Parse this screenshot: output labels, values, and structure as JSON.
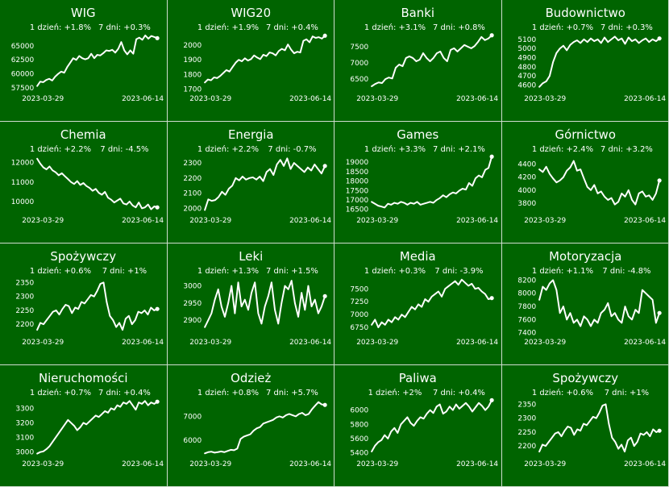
{
  "chart_data": [
    {
      "type": "line",
      "title": "WIG",
      "stats": {
        "d1": "1 dzień: +1.8%",
        "d7": "7 dni: +0.3%"
      },
      "x_start": "2023-03-29",
      "x_end": "2023-06-14",
      "yticks": [
        57500,
        60000,
        62500,
        65000
      ],
      "ylim": [
        57000,
        67500
      ],
      "values": [
        57800,
        58600,
        58500,
        58900,
        59100,
        58800,
        59500,
        60000,
        60400,
        60200,
        61200,
        62000,
        62800,
        62500,
        63200,
        62800,
        62600,
        62800,
        63600,
        62800,
        63400,
        63300,
        63700,
        64200,
        64100,
        64300,
        63800,
        64500,
        65700,
        64200,
        63500,
        64200,
        63600,
        66200,
        66500,
        66100,
        66900,
        66300,
        66800,
        66600,
        66400
      ]
    },
    {
      "type": "line",
      "title": "WIG20",
      "stats": {
        "d1": "1 dzień: +1.9%",
        "d7": "7 dni: +0.4%"
      },
      "x_start": "2023-03-29",
      "x_end": "2023-06-14",
      "yticks": [
        1700,
        1800,
        1900,
        2000
      ],
      "ylim": [
        1690,
        2090
      ],
      "values": [
        1745,
        1765,
        1760,
        1780,
        1775,
        1790,
        1810,
        1830,
        1820,
        1850,
        1880,
        1900,
        1890,
        1910,
        1895,
        1905,
        1930,
        1915,
        1905,
        1935,
        1925,
        1950,
        1945,
        1930,
        1960,
        1975,
        1965,
        2005,
        1970,
        1945,
        1955,
        1950,
        2030,
        2040,
        2020,
        2060,
        2050,
        2055,
        2045,
        2065
      ]
    },
    {
      "type": "line",
      "title": "Banki",
      "stats": {
        "d1": "1 dzień: +3.1%",
        "d7": "7 dni: +0.8%"
      },
      "x_start": "2023-03-29",
      "x_end": "2023-06-14",
      "yticks": [
        6500,
        7000,
        7500
      ],
      "ylim": [
        6150,
        7950
      ],
      "values": [
        6280,
        6350,
        6400,
        6380,
        6500,
        6550,
        6520,
        6850,
        6950,
        6900,
        7150,
        7200,
        7150,
        7050,
        7100,
        7300,
        7150,
        7050,
        7150,
        7300,
        7350,
        7150,
        7050,
        7400,
        7450,
        7350,
        7450,
        7550,
        7500,
        7450,
        7520,
        7650,
        7800,
        7700,
        7750,
        7850
      ]
    },
    {
      "type": "line",
      "title": "Budownictwo",
      "stats": {
        "d1": "1 dzień: +0.7%",
        "d7": "7 dni: +0.3%"
      },
      "x_start": "2023-03-29",
      "x_end": "2023-06-14",
      "yticks": [
        4600,
        4700,
        4800,
        4900,
        5000,
        5100
      ],
      "ylim": [
        4540,
        5180
      ],
      "values": [
        4580,
        4620,
        4640,
        4700,
        4850,
        4950,
        5000,
        5030,
        4980,
        5040,
        5070,
        5090,
        5060,
        5100,
        5070,
        5110,
        5080,
        5100,
        5060,
        5120,
        5070,
        5100,
        5130,
        5090,
        5110,
        5050,
        5120,
        5080,
        5100,
        5060,
        5090,
        5110,
        5070,
        5100,
        5080,
        5110
      ]
    },
    {
      "type": "line",
      "title": "Chemia",
      "stats": {
        "d1": "1 dzień: +2.2%",
        "d7": "7 dni: -4.5%"
      },
      "x_start": "2023-03-29",
      "x_end": "2023-06-14",
      "yticks": [
        10000,
        11000,
        12000
      ],
      "ylim": [
        9450,
        12450
      ],
      "values": [
        12200,
        11950,
        11750,
        11650,
        11800,
        11600,
        11500,
        11350,
        11450,
        11300,
        11150,
        11000,
        10900,
        11050,
        10850,
        10950,
        10800,
        10700,
        10550,
        10650,
        10450,
        10350,
        10500,
        10200,
        10100,
        9950,
        10050,
        10150,
        9900,
        9850,
        10000,
        9800,
        9700,
        9950,
        9650,
        9700,
        9850,
        9600,
        9750,
        9700
      ]
    },
    {
      "type": "line",
      "title": "Energia",
      "stats": {
        "d1": "1 dzień: +2.2%",
        "d7": "7 dni: -0.7%"
      },
      "x_start": "2023-03-29",
      "x_end": "2023-06-14",
      "yticks": [
        2000,
        2100,
        2200,
        2300
      ],
      "ylim": [
        1975,
        2360
      ],
      "values": [
        1990,
        2060,
        2050,
        2055,
        2075,
        2110,
        2090,
        2130,
        2150,
        2200,
        2185,
        2210,
        2190,
        2200,
        2205,
        2190,
        2210,
        2180,
        2240,
        2260,
        2220,
        2290,
        2320,
        2280,
        2330,
        2260,
        2300,
        2280,
        2260,
        2240,
        2270,
        2250,
        2290,
        2260,
        2230,
        2280
      ]
    },
    {
      "type": "line",
      "title": "Games",
      "stats": {
        "d1": "1 dzień: +3.3%",
        "d7": "7 dni: +2.1%"
      },
      "x_start": "2023-03-29",
      "x_end": "2023-06-14",
      "yticks": [
        16500,
        17000,
        17500,
        18000,
        18500,
        19000
      ],
      "ylim": [
        16350,
        19450
      ],
      "values": [
        16900,
        16800,
        16700,
        16650,
        16600,
        16800,
        16750,
        16850,
        16800,
        16900,
        16850,
        16750,
        16850,
        16800,
        16900,
        16750,
        16800,
        16850,
        16900,
        16850,
        17000,
        17100,
        17250,
        17150,
        17300,
        17400,
        17350,
        17500,
        17600,
        17550,
        17900,
        17750,
        18150,
        18300,
        18200,
        18600,
        18700,
        19300
      ]
    },
    {
      "type": "line",
      "title": "Górnictwo",
      "stats": {
        "d1": "1 dzień: +2.4%",
        "d7": "7 dni: +3.2%"
      },
      "x_start": "2023-03-29",
      "x_end": "2023-06-14",
      "yticks": [
        3800,
        4000,
        4200,
        4400
      ],
      "ylim": [
        3660,
        4560
      ],
      "values": [
        4320,
        4280,
        4360,
        4250,
        4180,
        4120,
        4150,
        4200,
        4300,
        4350,
        4450,
        4300,
        4320,
        4180,
        4050,
        4000,
        4080,
        3950,
        3980,
        3900,
        3850,
        3880,
        3780,
        3820,
        3950,
        3900,
        4000,
        3850,
        3780,
        3950,
        3980,
        3900,
        3920,
        3850,
        3950,
        4150
      ]
    },
    {
      "type": "line",
      "title": "Spożywczy",
      "stats": {
        "d1": "1 dzień: +0.6%",
        "d7": "7 dni: +1%"
      },
      "x_start": "2023-03-29",
      "x_end": "2023-06-14",
      "yticks": [
        2200,
        2250,
        2300,
        2350
      ],
      "ylim": [
        2165,
        2375
      ],
      "values": [
        2180,
        2205,
        2200,
        2215,
        2230,
        2245,
        2250,
        2235,
        2255,
        2270,
        2265,
        2240,
        2260,
        2255,
        2280,
        2275,
        2290,
        2305,
        2300,
        2320,
        2345,
        2350,
        2280,
        2230,
        2215,
        2190,
        2205,
        2180,
        2220,
        2230,
        2200,
        2215,
        2245,
        2240,
        2250,
        2235,
        2260,
        2250,
        2255
      ]
    },
    {
      "type": "line",
      "title": "Leki",
      "stats": {
        "d1": "1 dzień: +1.3%",
        "d7": "7 dni: +1.5%"
      },
      "x_start": "2023-03-29",
      "x_end": "2023-06-14",
      "yticks": [
        2900,
        2950,
        3000
      ],
      "ylim": [
        2860,
        3030
      ],
      "values": [
        2880,
        2900,
        2920,
        2960,
        2990,
        2940,
        2910,
        2950,
        3000,
        2920,
        3010,
        2940,
        2960,
        2930,
        2980,
        3010,
        2920,
        2890,
        2940,
        2970,
        3010,
        2930,
        2890,
        2950,
        3000,
        2990,
        3015,
        2950,
        2910,
        2980,
        2930,
        3000,
        2940,
        2960,
        2920,
        2940,
        2970
      ]
    },
    {
      "type": "line",
      "title": "Media",
      "stats": {
        "d1": "1 dzień: +0.3%",
        "d7": "7 dni: -3.9%"
      },
      "x_start": "2023-03-29",
      "x_end": "2023-06-14",
      "yticks": [
        6750,
        7000,
        7250,
        7500
      ],
      "ylim": [
        6620,
        7760
      ],
      "values": [
        6800,
        6900,
        6750,
        6850,
        6800,
        6900,
        6850,
        6950,
        6900,
        7000,
        6950,
        7050,
        7150,
        7100,
        7200,
        7150,
        7300,
        7250,
        7350,
        7400,
        7450,
        7350,
        7500,
        7550,
        7600,
        7650,
        7580,
        7680,
        7620,
        7560,
        7600,
        7500,
        7520,
        7450,
        7400,
        7300,
        7320
      ]
    },
    {
      "type": "line",
      "title": "Motoryzacja",
      "stats": {
        "d1": "1 dzień: +1.1%",
        "d7": "7 dni: -4.8%"
      },
      "x_start": "2023-03-29",
      "x_end": "2023-06-14",
      "yticks": [
        7400,
        7600,
        7800,
        8000,
        8200
      ],
      "ylim": [
        7380,
        8270
      ],
      "values": [
        7900,
        8100,
        8050,
        8150,
        8200,
        8050,
        7700,
        7800,
        7600,
        7700,
        7550,
        7600,
        7500,
        7650,
        7600,
        7500,
        7600,
        7550,
        7700,
        7750,
        7850,
        7650,
        7700,
        7600,
        7550,
        7800,
        7650,
        7600,
        7750,
        7700,
        8050,
        8000,
        7950,
        7900,
        7550,
        7700
      ]
    },
    {
      "type": "line",
      "title": "Nieruchomości",
      "stats": {
        "d1": "1 dzień: +0.7%",
        "d7": "7 dni: +0.4%"
      },
      "x_start": "2023-03-29",
      "x_end": "2023-06-14",
      "yticks": [
        3000,
        3100,
        3200,
        3300
      ],
      "ylim": [
        2975,
        3375
      ],
      "values": [
        2990,
        3000,
        3005,
        3020,
        3040,
        3070,
        3100,
        3130,
        3160,
        3190,
        3220,
        3200,
        3180,
        3150,
        3170,
        3200,
        3190,
        3210,
        3230,
        3250,
        3240,
        3260,
        3280,
        3270,
        3300,
        3290,
        3320,
        3310,
        3340,
        3330,
        3350,
        3320,
        3290,
        3340,
        3330,
        3350,
        3320,
        3340,
        3330,
        3345
      ]
    },
    {
      "type": "line",
      "title": "Odzież",
      "stats": {
        "d1": "1 dzień: +0.8%",
        "d7": "7 dni: +5.7%"
      },
      "x_start": "2023-03-29",
      "x_end": "2023-06-14",
      "yticks": [
        6000,
        7000
      ],
      "ylim": [
        5350,
        7800
      ],
      "values": [
        5450,
        5500,
        5520,
        5480,
        5500,
        5530,
        5500,
        5550,
        5600,
        5580,
        5650,
        6050,
        6150,
        6200,
        6250,
        6400,
        6500,
        6550,
        6700,
        6750,
        6800,
        6850,
        6950,
        7000,
        6950,
        7050,
        7100,
        7050,
        7000,
        7100,
        7150,
        7050,
        7100,
        7300,
        7450,
        7600,
        7500,
        7480
      ]
    },
    {
      "type": "line",
      "title": "Paliwa",
      "stats": {
        "d1": "1 dzień: +2%",
        "d7": "7 dni: +0.4%"
      },
      "x_start": "2023-03-29",
      "x_end": "2023-06-14",
      "yticks": [
        5400,
        5600,
        5800,
        6000
      ],
      "ylim": [
        5360,
        6180
      ],
      "values": [
        5420,
        5500,
        5550,
        5580,
        5650,
        5600,
        5700,
        5750,
        5680,
        5800,
        5850,
        5900,
        5820,
        5780,
        5850,
        5900,
        5880,
        5950,
        6000,
        5960,
        6050,
        6080,
        5950,
        5980,
        6050,
        6000,
        6080,
        6020,
        6060,
        6100,
        6050,
        5980,
        6040,
        6100,
        6060,
        6000,
        6050,
        6140
      ]
    },
    {
      "type": "line",
      "title": "Spożywczy",
      "stats": {
        "d1": "1 dzień: +0.6%",
        "d7": "7 dni: +1%"
      },
      "x_start": "2023-03-29",
      "x_end": "2023-06-14",
      "yticks": [
        2200,
        2250,
        2300,
        2350
      ],
      "ylim": [
        2165,
        2375
      ],
      "values": [
        2180,
        2205,
        2200,
        2215,
        2230,
        2245,
        2250,
        2235,
        2255,
        2270,
        2265,
        2240,
        2260,
        2255,
        2280,
        2275,
        2290,
        2305,
        2300,
        2320,
        2345,
        2350,
        2280,
        2230,
        2215,
        2190,
        2205,
        2180,
        2220,
        2230,
        2200,
        2215,
        2245,
        2240,
        2250,
        2235,
        2260,
        2250,
        2255
      ]
    }
  ]
}
